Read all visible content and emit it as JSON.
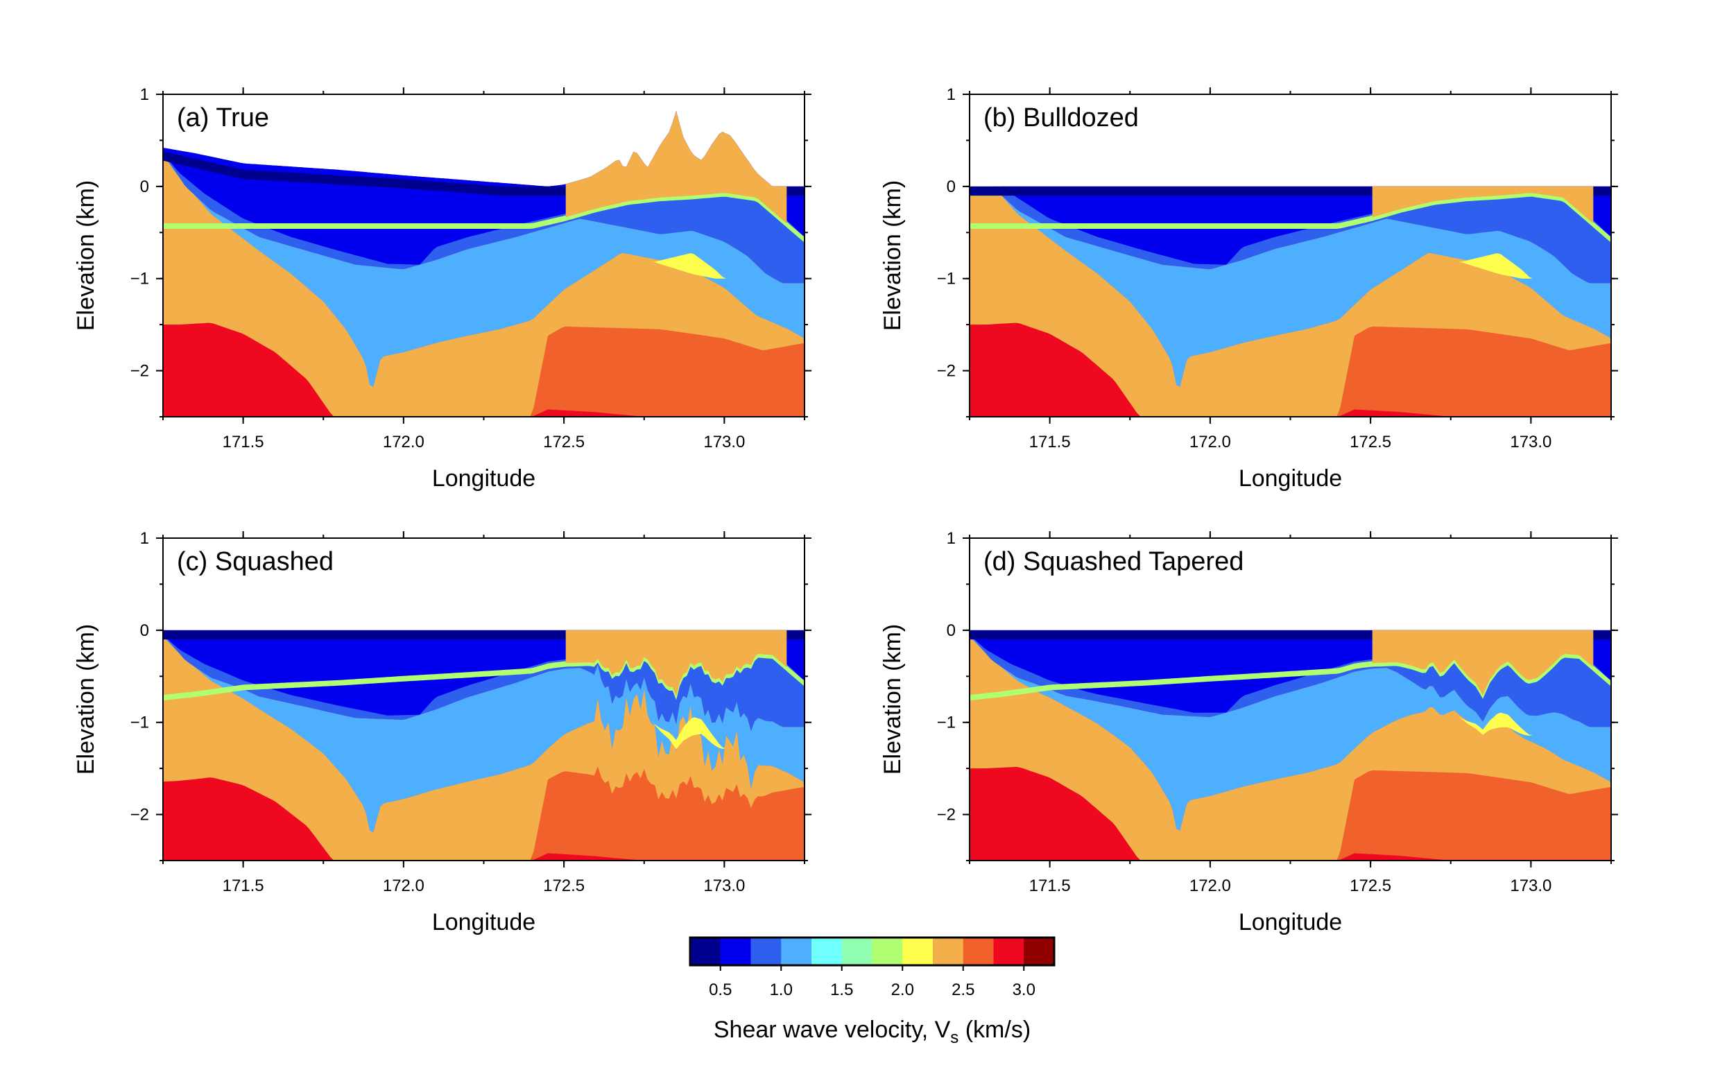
{
  "chart_data": {
    "type": "cross-section",
    "panels": [
      {
        "label": "(a) True",
        "variant": "true"
      },
      {
        "label": "(b) Bulldozed",
        "variant": "bulldozed"
      },
      {
        "label": "(c) Squashed",
        "variant": "squashed"
      },
      {
        "label": "(d) Squashed Tapered",
        "variant": "tapered"
      }
    ],
    "xlabel": "Longitude",
    "ylabel": "Elevation (km)",
    "xlim": [
      171.25,
      173.25
    ],
    "ylim": [
      -2.5,
      1
    ],
    "xticks": [
      "171.5",
      "172.0",
      "172.5",
      "173.0"
    ],
    "yticks": [
      "1",
      "0",
      "−1",
      "−2"
    ],
    "colorbar": {
      "title_main": "Shear wave velocity, V",
      "title_sub": "s",
      "title_unit": " (km/s)",
      "ticks": [
        "0.5",
        "1.0",
        "1.5",
        "2.0",
        "2.5",
        "3.0"
      ],
      "bins": [
        0.25,
        0.5,
        0.75,
        1.0,
        1.25,
        1.5,
        1.75,
        2.0,
        2.25,
        2.5,
        2.75,
        3.0,
        3.25
      ],
      "colors": [
        "#00008f",
        "#0000ee",
        "#2f5fef",
        "#4fafff",
        "#70ffff",
        "#8fffaf",
        "#afff70",
        "#ffff4f",
        "#f3b04a",
        "#f0612c",
        "#ee0920",
        "#900000"
      ]
    }
  }
}
